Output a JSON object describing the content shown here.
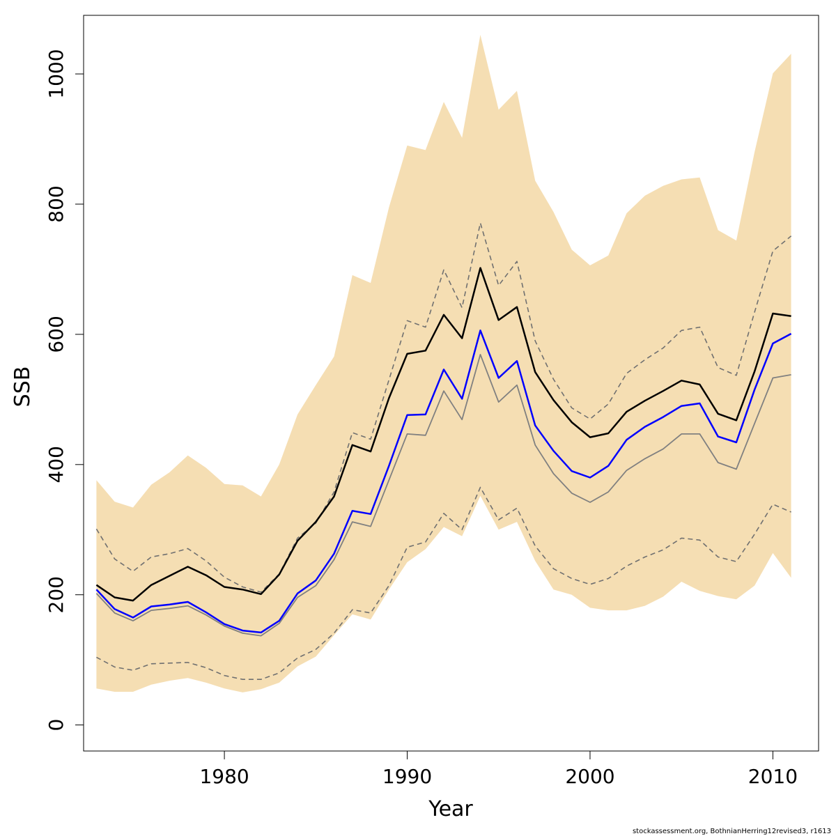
{
  "chart_data": {
    "type": "line",
    "xlabel": "Year",
    "ylabel": "SSB",
    "xlim": [
      1972.3,
      2012.5
    ],
    "ylim": [
      -40,
      1090
    ],
    "x_ticks": [
      1980,
      1990,
      2000,
      2010
    ],
    "y_ticks": [
      0,
      200,
      400,
      600,
      800,
      1000
    ],
    "grid": false,
    "credit": "stockassessment.org, BothnianHerring12revised3, r1613",
    "colors": {
      "band": "#f5deb3",
      "black_line": "#000000",
      "blue_line": "#0000ff",
      "grey_line": "#808080",
      "dashed": "#707070"
    },
    "years": [
      1973,
      1974,
      1975,
      1976,
      1977,
      1978,
      1979,
      1980,
      1981,
      1982,
      1983,
      1984,
      1985,
      1986,
      1987,
      1988,
      1989,
      1990,
      1991,
      1992,
      1993,
      1994,
      1995,
      1996,
      1997,
      1998,
      1999,
      2000,
      2001,
      2002,
      2003,
      2004,
      2005,
      2006,
      2007,
      2008,
      2009,
      2010,
      2011
    ],
    "band_upper": [
      376,
      343,
      334,
      369,
      388,
      414,
      395,
      370,
      368,
      351,
      400,
      477,
      522,
      566,
      691,
      679,
      795,
      890,
      883,
      957,
      902,
      1060,
      945,
      974,
      836,
      788,
      730,
      706,
      721,
      786,
      813,
      828,
      838,
      841,
      760,
      744,
      880,
      1001,
      1031
    ],
    "band_lower": [
      56,
      51,
      51,
      62,
      68,
      72,
      65,
      56,
      50,
      55,
      65,
      90,
      105,
      138,
      170,
      162,
      208,
      250,
      270,
      304,
      290,
      352,
      300,
      312,
      252,
      208,
      200,
      180,
      176,
      176,
      183,
      197,
      220,
      206,
      198,
      193,
      214,
      264,
      226
    ],
    "series": [
      {
        "values": [
          215,
          196,
          191,
          215,
          229,
          243,
          230,
          212,
          208,
          201,
          231,
          283,
          312,
          351,
          430,
          420,
          502,
          570,
          575,
          630,
          594,
          702,
          622,
          642,
          542,
          499,
          465,
          442,
          448,
          481,
          498,
          513,
          529,
          523,
          478,
          468,
          543,
          632,
          628
        ]
      },
      {
        "values": [
          208,
          178,
          165,
          182,
          185,
          189,
          173,
          155,
          145,
          142,
          160,
          202,
          222,
          263,
          329,
          324,
          398,
          476,
          477,
          546,
          501,
          606,
          533,
          559,
          460,
          421,
          390,
          380,
          398,
          438,
          458,
          473,
          490,
          494,
          443,
          434,
          515,
          586,
          601
        ]
      },
      {
        "values": [
          202,
          172,
          160,
          176,
          179,
          183,
          169,
          152,
          141,
          137,
          156,
          196,
          214,
          254,
          312,
          305,
          376,
          447,
          445,
          513,
          469,
          569,
          496,
          522,
          430,
          386,
          356,
          342,
          358,
          391,
          409,
          424,
          447,
          447,
          403,
          393,
          463,
          533,
          538
        ]
      },
      {
        "values": [
          301,
          255,
          236,
          258,
          263,
          271,
          252,
          227,
          212,
          204,
          232,
          287,
          310,
          358,
          449,
          439,
          530,
          621,
          611,
          699,
          641,
          771,
          675,
          712,
          590,
          531,
          487,
          470,
          493,
          540,
          561,
          579,
          606,
          611,
          549,
          537,
          634,
          728,
          751
        ]
      },
      {
        "values": [
          104,
          89,
          84,
          94,
          95,
          96,
          88,
          76,
          70,
          70,
          80,
          103,
          116,
          141,
          177,
          172,
          214,
          273,
          281,
          325,
          300,
          365,
          315,
          333,
          275,
          240,
          225,
          216,
          225,
          244,
          258,
          269,
          287,
          284,
          258,
          251,
          293,
          339,
          327
        ]
      }
    ]
  }
}
